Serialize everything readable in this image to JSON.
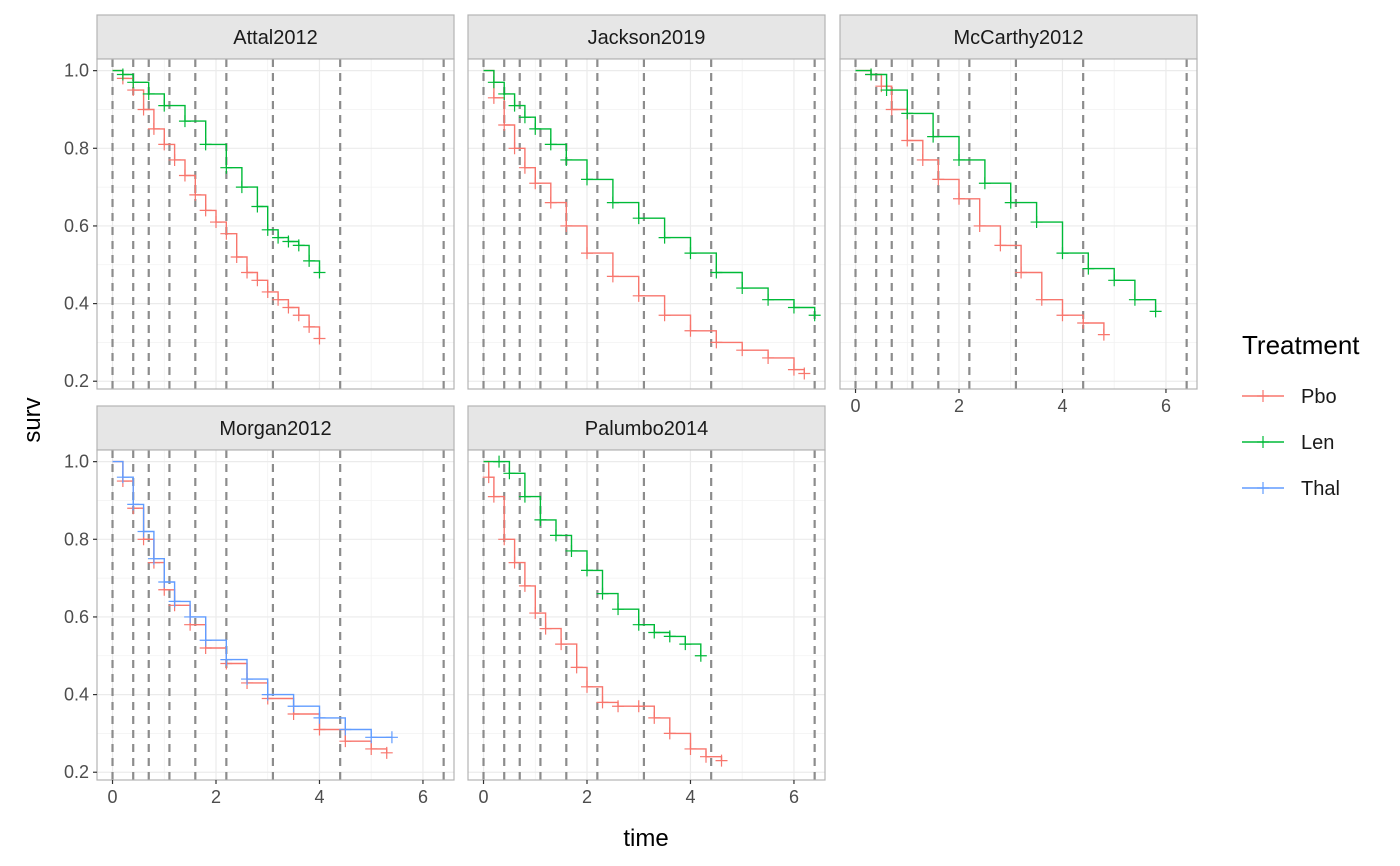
{
  "chart_data": {
    "type": "line",
    "subtype": "kaplan-meier survival curves with censoring marks, faceted",
    "xlabel": "time",
    "ylabel": "surv",
    "xlim": [
      -0.3,
      6.6
    ],
    "ylim": [
      0.18,
      1.03
    ],
    "x_ticks": [
      0,
      2,
      4,
      6
    ],
    "y_ticks": [
      0.2,
      0.4,
      0.6,
      0.8,
      1.0
    ],
    "y_tick_labels": [
      "0.2",
      "0.4",
      "0.6",
      "0.8",
      "1.0"
    ],
    "grid": true,
    "reference_lines": {
      "style": "dashed vertical",
      "x": [
        0,
        0.4,
        0.7,
        1.1,
        1.6,
        2.2,
        3.1,
        4.4,
        6.4
      ]
    },
    "legend": {
      "title": "Treatment",
      "position": "right",
      "entries": [
        {
          "name": "Pbo",
          "color": "#F8766D"
        },
        {
          "name": "Len",
          "color": "#00BA38"
        },
        {
          "name": "Thal",
          "color": "#619CFF"
        }
      ]
    },
    "facets": [
      {
        "name": "Attal2012",
        "series": [
          {
            "name": "Pbo",
            "points": [
              [
                0,
                1.0
              ],
              [
                0.2,
                0.98
              ],
              [
                0.4,
                0.95
              ],
              [
                0.6,
                0.9
              ],
              [
                0.8,
                0.85
              ],
              [
                1.0,
                0.81
              ],
              [
                1.2,
                0.77
              ],
              [
                1.4,
                0.73
              ],
              [
                1.6,
                0.68
              ],
              [
                1.8,
                0.64
              ],
              [
                2.0,
                0.61
              ],
              [
                2.2,
                0.58
              ],
              [
                2.4,
                0.52
              ],
              [
                2.6,
                0.48
              ],
              [
                2.8,
                0.46
              ],
              [
                3.0,
                0.43
              ],
              [
                3.2,
                0.41
              ],
              [
                3.4,
                0.39
              ],
              [
                3.6,
                0.37
              ],
              [
                3.8,
                0.34
              ],
              [
                4.0,
                0.31
              ]
            ]
          },
          {
            "name": "Len",
            "points": [
              [
                0,
                1.0
              ],
              [
                0.2,
                0.99
              ],
              [
                0.4,
                0.97
              ],
              [
                0.7,
                0.94
              ],
              [
                1.0,
                0.91
              ],
              [
                1.4,
                0.87
              ],
              [
                1.8,
                0.81
              ],
              [
                2.2,
                0.75
              ],
              [
                2.5,
                0.7
              ],
              [
                2.8,
                0.65
              ],
              [
                3.0,
                0.59
              ],
              [
                3.2,
                0.57
              ],
              [
                3.4,
                0.56
              ],
              [
                3.6,
                0.55
              ],
              [
                3.8,
                0.51
              ],
              [
                4.0,
                0.48
              ]
            ]
          }
        ]
      },
      {
        "name": "Jackson2019",
        "series": [
          {
            "name": "Pbo",
            "points": [
              [
                0,
                1.0
              ],
              [
                0.2,
                0.93
              ],
              [
                0.4,
                0.86
              ],
              [
                0.6,
                0.8
              ],
              [
                0.8,
                0.75
              ],
              [
                1.0,
                0.71
              ],
              [
                1.3,
                0.66
              ],
              [
                1.6,
                0.6
              ],
              [
                2.0,
                0.53
              ],
              [
                2.5,
                0.47
              ],
              [
                3.0,
                0.42
              ],
              [
                3.5,
                0.37
              ],
              [
                4.0,
                0.33
              ],
              [
                4.5,
                0.3
              ],
              [
                5.0,
                0.28
              ],
              [
                5.5,
                0.26
              ],
              [
                6.0,
                0.23
              ],
              [
                6.2,
                0.22
              ]
            ]
          },
          {
            "name": "Len",
            "points": [
              [
                0,
                1.0
              ],
              [
                0.2,
                0.97
              ],
              [
                0.4,
                0.94
              ],
              [
                0.6,
                0.91
              ],
              [
                0.8,
                0.88
              ],
              [
                1.0,
                0.85
              ],
              [
                1.3,
                0.81
              ],
              [
                1.6,
                0.77
              ],
              [
                2.0,
                0.72
              ],
              [
                2.5,
                0.66
              ],
              [
                3.0,
                0.62
              ],
              [
                3.5,
                0.57
              ],
              [
                4.0,
                0.53
              ],
              [
                4.5,
                0.48
              ],
              [
                5.0,
                0.44
              ],
              [
                5.5,
                0.41
              ],
              [
                6.0,
                0.39
              ],
              [
                6.4,
                0.37
              ]
            ]
          }
        ]
      },
      {
        "name": "McCarthy2012",
        "series": [
          {
            "name": "Pbo",
            "points": [
              [
                0,
                1.0
              ],
              [
                0.3,
                0.99
              ],
              [
                0.5,
                0.96
              ],
              [
                0.7,
                0.9
              ],
              [
                1.0,
                0.82
              ],
              [
                1.3,
                0.77
              ],
              [
                1.6,
                0.72
              ],
              [
                2.0,
                0.67
              ],
              [
                2.4,
                0.6
              ],
              [
                2.8,
                0.55
              ],
              [
                3.2,
                0.48
              ],
              [
                3.6,
                0.41
              ],
              [
                4.0,
                0.37
              ],
              [
                4.4,
                0.35
              ],
              [
                4.8,
                0.32
              ]
            ]
          },
          {
            "name": "Len",
            "points": [
              [
                0,
                1.0
              ],
              [
                0.3,
                0.99
              ],
              [
                0.6,
                0.95
              ],
              [
                1.0,
                0.89
              ],
              [
                1.5,
                0.83
              ],
              [
                2.0,
                0.77
              ],
              [
                2.5,
                0.71
              ],
              [
                3.0,
                0.66
              ],
              [
                3.5,
                0.61
              ],
              [
                4.0,
                0.53
              ],
              [
                4.5,
                0.49
              ],
              [
                5.0,
                0.46
              ],
              [
                5.4,
                0.41
              ],
              [
                5.8,
                0.38
              ]
            ]
          }
        ]
      },
      {
        "name": "Morgan2012",
        "series": [
          {
            "name": "Pbo",
            "points": [
              [
                0,
                1.0
              ],
              [
                0.2,
                0.95
              ],
              [
                0.4,
                0.88
              ],
              [
                0.6,
                0.8
              ],
              [
                0.8,
                0.74
              ],
              [
                1.0,
                0.67
              ],
              [
                1.2,
                0.63
              ],
              [
                1.5,
                0.58
              ],
              [
                1.8,
                0.52
              ],
              [
                2.2,
                0.48
              ],
              [
                2.6,
                0.43
              ],
              [
                3.0,
                0.39
              ],
              [
                3.5,
                0.35
              ],
              [
                4.0,
                0.31
              ],
              [
                4.5,
                0.28
              ],
              [
                5.0,
                0.26
              ],
              [
                5.3,
                0.25
              ]
            ]
          },
          {
            "name": "Thal",
            "points": [
              [
                0,
                1.0
              ],
              [
                0.2,
                0.96
              ],
              [
                0.4,
                0.89
              ],
              [
                0.6,
                0.82
              ],
              [
                0.8,
                0.75
              ],
              [
                1.0,
                0.69
              ],
              [
                1.2,
                0.64
              ],
              [
                1.5,
                0.6
              ],
              [
                1.8,
                0.54
              ],
              [
                2.2,
                0.49
              ],
              [
                2.6,
                0.44
              ],
              [
                3.0,
                0.4
              ],
              [
                3.5,
                0.37
              ],
              [
                4.0,
                0.34
              ],
              [
                4.5,
                0.31
              ],
              [
                5.0,
                0.29
              ],
              [
                5.4,
                0.29
              ]
            ]
          }
        ]
      },
      {
        "name": "Palumbo2014",
        "series": [
          {
            "name": "Pbo",
            "points": [
              [
                0,
                1.0
              ],
              [
                0.1,
                0.96
              ],
              [
                0.2,
                0.91
              ],
              [
                0.4,
                0.8
              ],
              [
                0.6,
                0.74
              ],
              [
                0.8,
                0.68
              ],
              [
                1.0,
                0.61
              ],
              [
                1.2,
                0.57
              ],
              [
                1.5,
                0.53
              ],
              [
                1.8,
                0.47
              ],
              [
                2.0,
                0.42
              ],
              [
                2.3,
                0.38
              ],
              [
                2.6,
                0.37
              ],
              [
                3.0,
                0.37
              ],
              [
                3.3,
                0.34
              ],
              [
                3.6,
                0.3
              ],
              [
                4.0,
                0.26
              ],
              [
                4.3,
                0.24
              ],
              [
                4.6,
                0.23
              ]
            ]
          },
          {
            "name": "Len",
            "points": [
              [
                0,
                1.0
              ],
              [
                0.3,
                1.0
              ],
              [
                0.5,
                0.97
              ],
              [
                0.8,
                0.91
              ],
              [
                1.1,
                0.85
              ],
              [
                1.4,
                0.81
              ],
              [
                1.7,
                0.77
              ],
              [
                2.0,
                0.72
              ],
              [
                2.3,
                0.66
              ],
              [
                2.6,
                0.62
              ],
              [
                3.0,
                0.58
              ],
              [
                3.3,
                0.56
              ],
              [
                3.6,
                0.55
              ],
              [
                3.9,
                0.53
              ],
              [
                4.2,
                0.5
              ]
            ]
          }
        ]
      }
    ]
  }
}
